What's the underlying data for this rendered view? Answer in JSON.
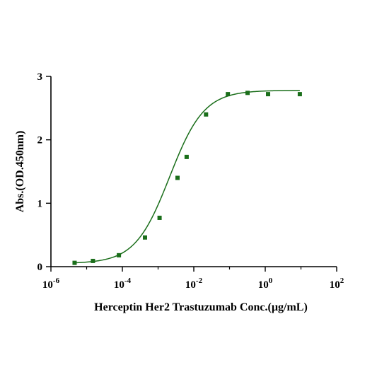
{
  "chart_data": {
    "type": "scatter",
    "xlabel": "Herceptin  Her2 Trastuzumab Conc.(µg/mL)",
    "ylabel": "Abs.(OD.450nm)",
    "x_scale": "log10",
    "xlim": [
      1e-06,
      100
    ],
    "ylim": [
      0,
      3
    ],
    "x_ticks": [
      {
        "value": 1e-06,
        "base": "10",
        "exp": "-6"
      },
      {
        "value": 0.0001,
        "base": "10",
        "exp": "-4"
      },
      {
        "value": 0.01,
        "base": "10",
        "exp": "-2"
      },
      {
        "value": 1,
        "base": "10",
        "exp": "0"
      },
      {
        "value": 100,
        "base": "10",
        "exp": "2"
      }
    ],
    "y_ticks": [
      {
        "value": 0,
        "label": "0"
      },
      {
        "value": 1,
        "label": "1"
      },
      {
        "value": 2,
        "label": "2"
      },
      {
        "value": 3,
        "label": "3"
      }
    ],
    "grid": false,
    "color": "#1a6e1a",
    "series": [
      {
        "marker": "square",
        "x": [
          4.6e-06,
          1.5e-05,
          8e-05,
          0.00043,
          0.0011,
          0.0035,
          0.0063,
          0.022,
          0.09,
          0.32,
          1.2,
          9.3
        ],
        "y": [
          0.06,
          0.09,
          0.18,
          0.46,
          0.77,
          1.4,
          1.73,
          2.4,
          2.72,
          2.74,
          2.72,
          2.72
        ]
      }
    ],
    "fit": {
      "type": "4PL",
      "bottom": 0.05,
      "top": 2.78,
      "ec50": 0.0021,
      "hill": 0.9,
      "x_range": [
        4.6e-06,
        9.3
      ]
    }
  }
}
